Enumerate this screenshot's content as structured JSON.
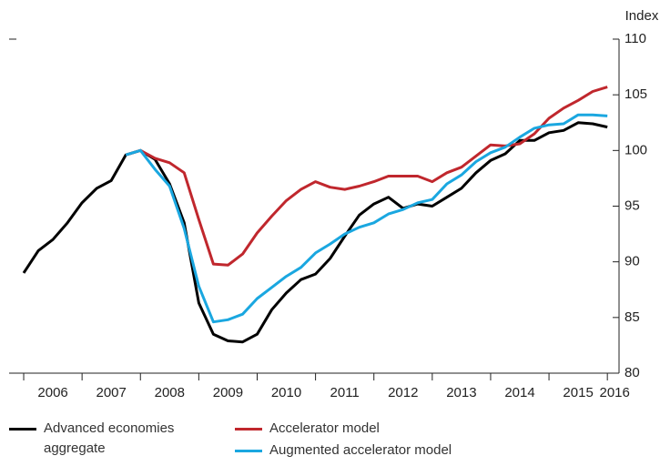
{
  "chart_data": {
    "type": "line",
    "y_label": "Index",
    "x": [
      2006,
      2006.25,
      2006.5,
      2006.75,
      2007,
      2007.25,
      2007.5,
      2007.75,
      2008,
      2008.25,
      2008.5,
      2008.75,
      2009,
      2009.25,
      2009.5,
      2009.75,
      2010,
      2010.25,
      2010.5,
      2010.75,
      2011,
      2011.25,
      2011.5,
      2011.75,
      2012,
      2012.25,
      2012.5,
      2012.75,
      2013,
      2013.25,
      2013.5,
      2013.75,
      2014,
      2014.25,
      2014.5,
      2014.75,
      2015,
      2015.25,
      2015.5,
      2015.75,
      2016
    ],
    "series": [
      {
        "name": "Advanced economies aggregate",
        "color": "#000000",
        "values": [
          89,
          91,
          92,
          93.5,
          95.3,
          96.6,
          97.3,
          99.6,
          100,
          99.2,
          97,
          93.5,
          86.3,
          83.5,
          82.9,
          82.8,
          83.5,
          85.7,
          87.2,
          88.4,
          88.9,
          90.3,
          92.3,
          94.2,
          95.2,
          95.8,
          94.8,
          95.2,
          95,
          95.8,
          96.6,
          98,
          99.1,
          99.7,
          100.9,
          100.9,
          101.6,
          101.8,
          102.5,
          102.4,
          102.1
        ]
      },
      {
        "name": "Accelerator model",
        "color": "#c0272d",
        "values": [
          null,
          null,
          null,
          null,
          null,
          null,
          null,
          99.6,
          100,
          99.3,
          98.9,
          98,
          93.8,
          89.8,
          89.7,
          90.7,
          92.6,
          94.1,
          95.5,
          96.5,
          97.2,
          96.7,
          96.5,
          96.8,
          97.2,
          97.7,
          97.7,
          97.7,
          97.2,
          98,
          98.5,
          99.5,
          100.5,
          100.4,
          100.6,
          101.5,
          102.9,
          103.8,
          104.5,
          105.3,
          105.7
        ]
      },
      {
        "name": "Augmented accelerator model",
        "color": "#1aa7e0",
        "values": [
          null,
          null,
          null,
          null,
          null,
          null,
          null,
          99.6,
          100,
          98.3,
          96.8,
          93,
          87.8,
          84.6,
          84.8,
          85.3,
          86.7,
          87.7,
          88.7,
          89.5,
          90.8,
          91.6,
          92.5,
          93.1,
          93.5,
          94.3,
          94.7,
          95.3,
          95.6,
          97,
          97.8,
          99,
          99.8,
          100.3,
          101.2,
          102,
          102.3,
          102.4,
          103.2,
          103.2,
          103.1
        ]
      }
    ],
    "xlim": [
      2005.75,
      2016.2
    ],
    "xticks": [
      2006,
      2007,
      2008,
      2009,
      2010,
      2011,
      2012,
      2013,
      2014,
      2015,
      2016
    ],
    "ylim": [
      80,
      110
    ],
    "yticks": [
      80,
      85,
      90,
      95,
      100,
      105,
      110
    ],
    "grid": false
  }
}
